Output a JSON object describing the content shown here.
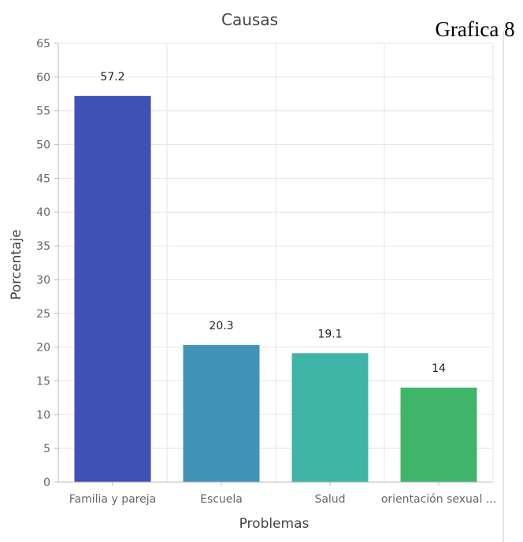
{
  "corner_label": "Grafica 8",
  "chart_data": {
    "type": "bar",
    "title": "Causas",
    "xlabel": "Problemas",
    "ylabel": "Porcentaje",
    "categories": [
      "Familia y pareja",
      "Escuela",
      "Salud",
      "orientación sexual ..."
    ],
    "values": [
      57.2,
      20.3,
      19.1,
      14
    ],
    "data_labels": [
      "57.2",
      "20.3",
      "19.1",
      "14"
    ],
    "colors": [
      "#3f51b5",
      "#4393b8",
      "#3fb5a8",
      "#3fb56a"
    ],
    "ylim": [
      0,
      65
    ],
    "yticks": [
      0,
      5,
      10,
      15,
      20,
      25,
      30,
      35,
      40,
      45,
      50,
      55,
      60,
      65
    ],
    "ytick_labels": [
      "0",
      "5",
      "10",
      "15",
      "20",
      "25",
      "30",
      "35",
      "40",
      "45",
      "50",
      "55",
      "60",
      "65"
    ],
    "grid": true,
    "legend": "none"
  }
}
